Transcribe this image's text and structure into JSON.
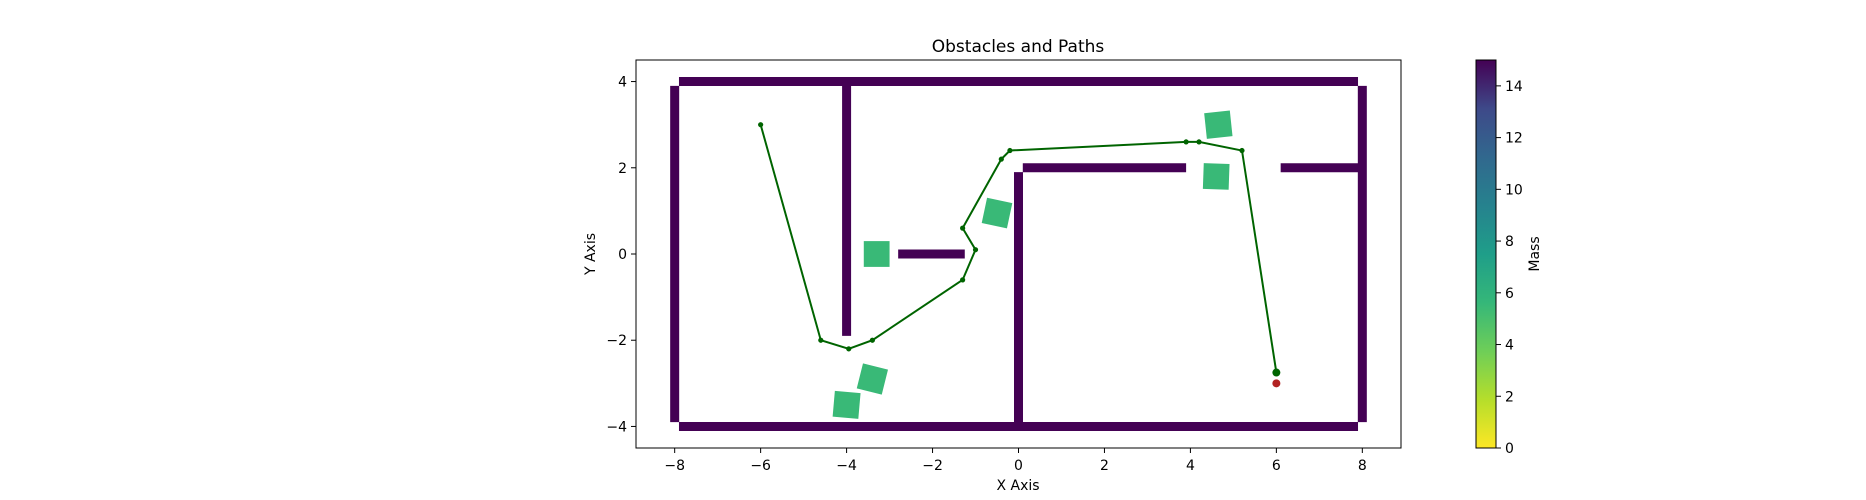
{
  "chart_data": {
    "type": "scatter",
    "title": "Obstacles and Paths",
    "xlabel": "X Axis",
    "ylabel": "Y Axis",
    "xlim": [
      -8.9,
      8.9
    ],
    "ylim": [
      -4.5,
      4.5
    ],
    "xticks": [
      -8,
      -6,
      -4,
      -2,
      0,
      2,
      4,
      6,
      8
    ],
    "xtick_labels": [
      "−8",
      "−6",
      "−4",
      "−2",
      "0",
      "2",
      "4",
      "6",
      "8"
    ],
    "yticks": [
      -4,
      -2,
      0,
      2,
      4
    ],
    "ytick_labels": [
      "−4",
      "−2",
      "0",
      "2",
      "4"
    ],
    "grid": false,
    "walls": [
      {
        "x1": -7.9,
        "y1": 4.0,
        "x2": 7.9,
        "y2": 4.0
      },
      {
        "x1": -7.9,
        "y1": -4.0,
        "x2": 7.9,
        "y2": -4.0
      },
      {
        "x1": -8.0,
        "y1": 3.9,
        "x2": -8.0,
        "y2": -3.9
      },
      {
        "x1": 8.0,
        "y1": 3.9,
        "x2": 8.0,
        "y2": -3.9
      },
      {
        "x1": -4.0,
        "y1": 4.0,
        "x2": -4.0,
        "y2": -1.9
      },
      {
        "x1": -2.8,
        "y1": 0.0,
        "x2": -1.25,
        "y2": 0.0
      },
      {
        "x1": 0.0,
        "y1": 1.9,
        "x2": 0.0,
        "y2": -4.0
      },
      {
        "x1": 0.1,
        "y1": 2.0,
        "x2": 3.9,
        "y2": 2.0
      },
      {
        "x1": 6.1,
        "y1": 2.0,
        "x2": 7.9,
        "y2": 2.0
      }
    ],
    "wall_mass": 15,
    "boxes": [
      {
        "x": -3.3,
        "y": 0.0,
        "angle": 0,
        "mass": 5.5
      },
      {
        "x": -0.5,
        "y": 0.95,
        "angle": 12,
        "mass": 5.5
      },
      {
        "x": 4.65,
        "y": 3.0,
        "angle": -6,
        "mass": 5.5
      },
      {
        "x": 4.6,
        "y": 1.8,
        "angle": 2,
        "mass": 5.5
      },
      {
        "x": -3.4,
        "y": -2.9,
        "angle": 14,
        "mass": 5.5
      },
      {
        "x": -4.0,
        "y": -3.5,
        "angle": 5,
        "mass": 5.5
      }
    ],
    "path": {
      "x": [
        -6.0,
        -4.6,
        -3.95,
        -3.4,
        -1.3,
        -1.0,
        -1.3,
        -0.4,
        -0.2,
        3.9,
        4.2,
        5.2,
        6.0
      ],
      "y": [
        3.0,
        -2.0,
        -2.2,
        -2.0,
        -0.6,
        0.1,
        0.6,
        2.2,
        2.4,
        2.6,
        2.6,
        2.4,
        -2.75
      ],
      "color": "#006400"
    },
    "goal_marker": {
      "x": 6.0,
      "y": -3.0,
      "color": "#b22222"
    },
    "colorbar": {
      "label": "Mass",
      "range": [
        0,
        15
      ],
      "ticks": [
        0,
        2,
        4,
        6,
        8,
        10,
        12,
        14
      ],
      "colormap": "viridis_r"
    }
  }
}
